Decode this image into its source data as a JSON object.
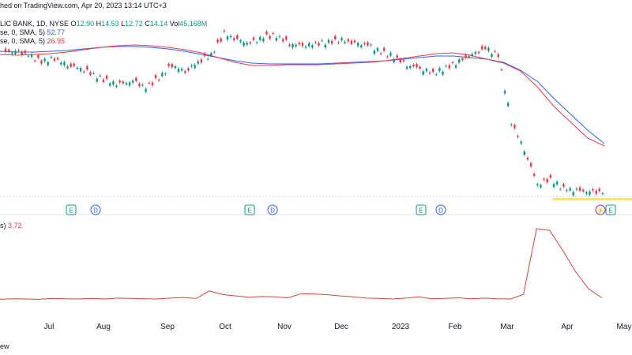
{
  "header": {
    "publish_line": "hed on TradingView.com, Apr 20, 2023 13:14 UTC+3",
    "symbol_line": "LIC BANK, 1D, NYSE",
    "o_label": "O",
    "o_value": "12.90",
    "h_label": "H",
    "h_value": "14.53",
    "l_label": "L",
    "l_value": "12.72",
    "c_label": "C",
    "c_value": "14.14",
    "vol_label": "Vol",
    "vol_value": "45.168M",
    "sma1_label": "se, 0, SMA, 5)",
    "sma1_value": "52.77",
    "sma2_label": "se, 0, SMA, 5)",
    "sma2_value": "26.95",
    "lower_label": "s)",
    "lower_value": "3.72"
  },
  "footer_text": "ew",
  "colors": {
    "up": "#089981",
    "down": "#f23645",
    "sma_fast": "#f23645",
    "sma_slow": "#2962ff",
    "lower_line": "#d0483c",
    "earnings": "#089981",
    "dividend": "#2962ff",
    "highlight": "#ffeb3b"
  },
  "chart_data": [
    {
      "type": "candlestick",
      "x_labels": [
        "Jul",
        "Aug",
        "Sep",
        "Oct",
        "Nov",
        "Dec",
        "2023",
        "Feb",
        "Mar",
        "Apr",
        "May"
      ],
      "close_path": [
        [
          "Jun",
          90
        ],
        [
          "Jun",
          88
        ],
        [
          "Jun",
          84
        ],
        [
          "Jul",
          86
        ],
        [
          "Jul",
          82
        ],
        [
          "Jul",
          80
        ],
        [
          "Aug",
          76
        ],
        [
          "Aug",
          72
        ],
        [
          "Aug",
          70
        ],
        [
          "Aug",
          72
        ],
        [
          "Sep",
          68
        ],
        [
          "Sep",
          74
        ],
        [
          "Sep",
          82
        ],
        [
          "Sep",
          78
        ],
        [
          "Oct",
          84
        ],
        [
          "Oct",
          88
        ],
        [
          "Oct",
          101
        ],
        [
          "Oct",
          97
        ],
        [
          "Nov",
          95
        ],
        [
          "Nov",
          99
        ],
        [
          "Nov",
          100
        ],
        [
          "Nov",
          95
        ],
        [
          "Nov",
          94
        ],
        [
          "Dec",
          95
        ],
        [
          "Dec",
          96
        ],
        [
          "Dec",
          97
        ],
        [
          "Dec",
          95
        ],
        [
          "2023",
          94
        ],
        [
          "2023",
          90
        ],
        [
          "Jan",
          87
        ],
        [
          "Jan",
          82
        ],
        [
          "Jan",
          80
        ],
        [
          "Feb",
          77
        ],
        [
          "Feb",
          80
        ],
        [
          "Feb",
          84
        ],
        [
          "Feb",
          88
        ],
        [
          "Mar",
          92
        ],
        [
          "Mar",
          88
        ],
        [
          "Mar",
          47
        ],
        [
          "Mar",
          30
        ],
        [
          "Mar",
          9
        ],
        [
          "Mar",
          12
        ],
        [
          "Mar",
          6
        ],
        [
          "Apr",
          5
        ],
        [
          "Apr",
          4
        ],
        [
          "Apr",
          4
        ]
      ],
      "sma_fast": [
        84,
        85,
        84,
        83,
        81,
        78,
        75,
        73,
        72,
        73,
        75,
        78,
        82,
        88,
        94,
        98,
        98,
        97,
        97,
        97,
        96,
        95,
        94,
        92,
        89,
        86,
        83,
        82,
        85,
        90,
        95,
        105,
        125,
        150,
        170,
        190,
        200
      ],
      "sma_slow": [
        80,
        81,
        81,
        80,
        79,
        77,
        75,
        74,
        74,
        75,
        77,
        80,
        84,
        88,
        92,
        95,
        96,
        96,
        96,
        96,
        95,
        94,
        93,
        92,
        90,
        88,
        86,
        86,
        88,
        90,
        94,
        104,
        118,
        140,
        160,
        180,
        197
      ],
      "events": [
        {
          "label": "E",
          "kind": "earnings"
        },
        {
          "label": "D",
          "kind": "dividend"
        },
        {
          "label": "E",
          "kind": "earnings"
        },
        {
          "label": "D",
          "kind": "dividend"
        },
        {
          "label": "E",
          "kind": "earnings"
        },
        {
          "label": "D",
          "kind": "dividend"
        },
        {
          "label": "⚡",
          "kind": "split"
        },
        {
          "label": "E",
          "kind": "earnings"
        }
      ],
      "ylim": null
    },
    {
      "type": "line",
      "name": "",
      "values": [
        3.2,
        3.4,
        3.3,
        3.2,
        3.5,
        3.4,
        3.3,
        3.5,
        3.3,
        3.6,
        3.5,
        3.4,
        3.3,
        3.6,
        3.8,
        3.5,
        5.9,
        4.8,
        4.3,
        3.9,
        4.1,
        4.0,
        3.7,
        5.0,
        4.9,
        4.7,
        4.3,
        4.0,
        3.6,
        3.5,
        3.3,
        3.6,
        4.0,
        3.4,
        3.5,
        3.7,
        3.4,
        3.6,
        3.4,
        3.3,
        4.8,
        26.0,
        25.5,
        19.0,
        12.0,
        6.5,
        3.7
      ]
    }
  ]
}
